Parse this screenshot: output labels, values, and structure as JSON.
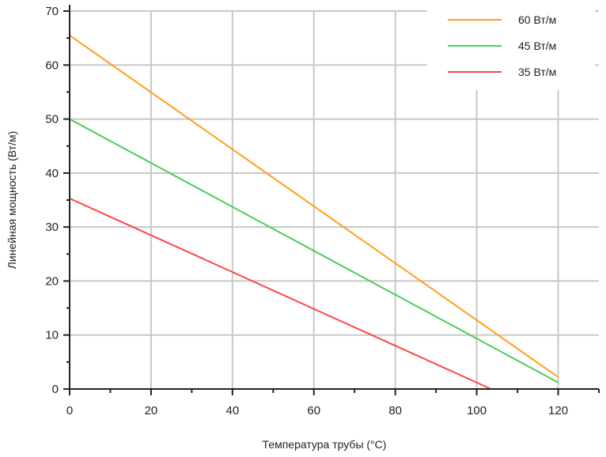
{
  "chart_data": {
    "type": "line",
    "title": "",
    "xlabel": "Температура трубы (°C)",
    "ylabel": "Линейная мощность (Вт/м)",
    "xlim": [
      0,
      130
    ],
    "ylim": [
      0,
      70
    ],
    "xticks": [
      0,
      20,
      40,
      60,
      80,
      100,
      120
    ],
    "yticks": [
      0,
      10,
      20,
      30,
      40,
      50,
      60,
      70
    ],
    "grid": true,
    "legend_position": "top-right",
    "series": [
      {
        "name": "60 Вт/м",
        "color": "#ff9d1c",
        "x": [
          0,
          120
        ],
        "y": [
          65.5,
          2.2
        ]
      },
      {
        "name": "45 Вт/м",
        "color": "#4ccd5a",
        "x": [
          0,
          120
        ],
        "y": [
          50,
          1.2
        ]
      },
      {
        "name": "35 Вт/м",
        "color": "#ff4545",
        "x": [
          0,
          103.5
        ],
        "y": [
          35.3,
          0
        ]
      }
    ]
  }
}
